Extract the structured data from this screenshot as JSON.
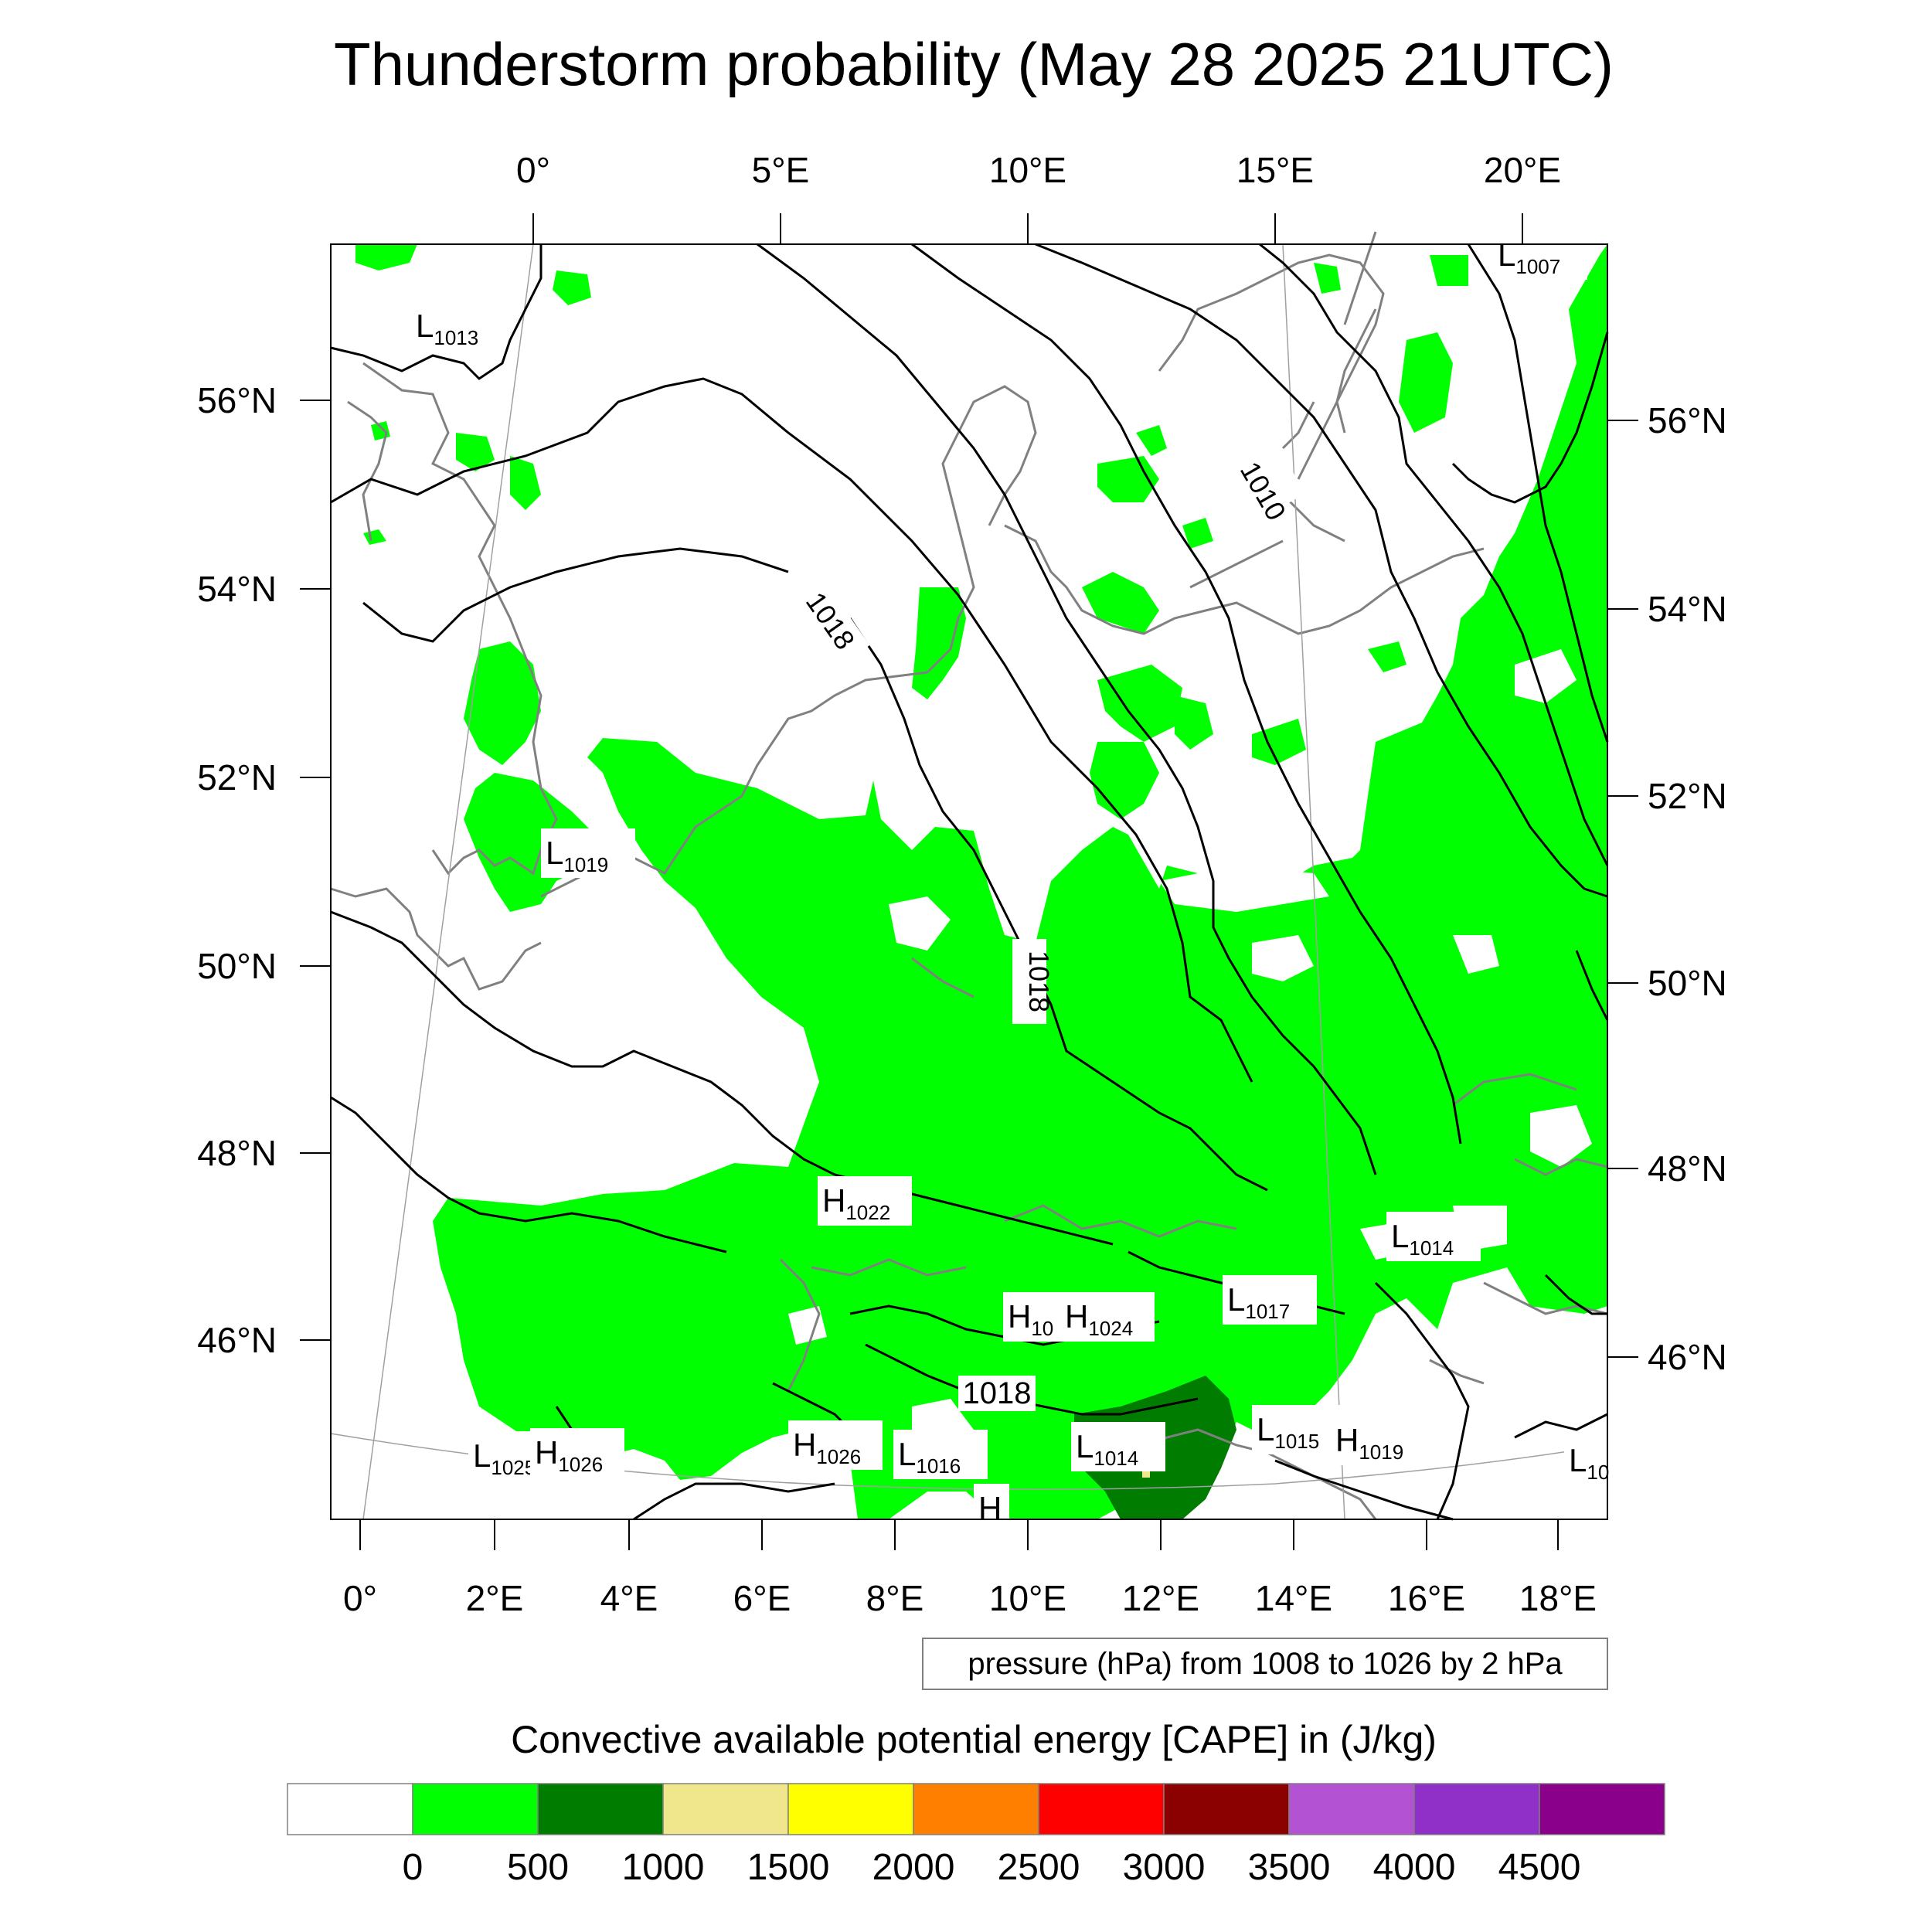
{
  "title": "Thunderstorm probability (May 28 2025 21UTC)",
  "top_lon_labels": [
    "0°",
    "5°E",
    "10°E",
    "15°E",
    "20°E"
  ],
  "bottom_lon_labels": [
    "0°",
    "2°E",
    "4°E",
    "6°E",
    "8°E",
    "10°E",
    "12°E",
    "14°E",
    "16°E",
    "18°E"
  ],
  "left_lat_labels": [
    "56°N",
    "54°N",
    "52°N",
    "50°N",
    "48°N",
    "46°N"
  ],
  "right_lat_labels": [
    "56°N",
    "54°N",
    "52°N",
    "50°N",
    "48°N",
    "46°N"
  ],
  "contour_labels": [
    "1010",
    "1018",
    "1018",
    "1018"
  ],
  "pressure_centers": [
    {
      "type": "L",
      "value": "1007"
    },
    {
      "type": "L",
      "value": "1013"
    },
    {
      "type": "L",
      "value": "1019"
    },
    {
      "type": "H",
      "value": "1022"
    },
    {
      "type": "L",
      "value": "1014"
    },
    {
      "type": "L",
      "value": "1017"
    },
    {
      "type": "H",
      "value": "10"
    },
    {
      "type": "H",
      "value": "1024"
    },
    {
      "type": "L",
      "value": "1015"
    },
    {
      "type": "H",
      "value": "1019"
    },
    {
      "type": "L",
      "value": "1025"
    },
    {
      "type": "H",
      "value": "1026"
    },
    {
      "type": "H",
      "value": "1026"
    },
    {
      "type": "L",
      "value": "1016"
    },
    {
      "type": "L",
      "value": "1014"
    },
    {
      "type": "L",
      "value": "10"
    },
    {
      "type": "H",
      "value": ""
    }
  ],
  "pressure_note": "pressure (hPa) from 1008 to 1026 by 2 hPa",
  "colorbar": {
    "title": "Convective available potential energy [CAPE] in (J/kg)",
    "colors": [
      "#ffffff",
      "#00ff00",
      "#007d00",
      "#f0e68c",
      "#ffff00",
      "#ff8000",
      "#ff0000",
      "#8b0000",
      "#b452d4",
      "#9030c8",
      "#8a008a"
    ],
    "tick_labels": [
      "0",
      "500",
      "1000",
      "1500",
      "2000",
      "2500",
      "3000",
      "3500",
      "4000",
      "4500"
    ]
  },
  "colors": {
    "cape_0_500": "#00ff00",
    "cape_500_1000": "#007d00",
    "coastline": "#808080",
    "isobar": "#000000"
  }
}
